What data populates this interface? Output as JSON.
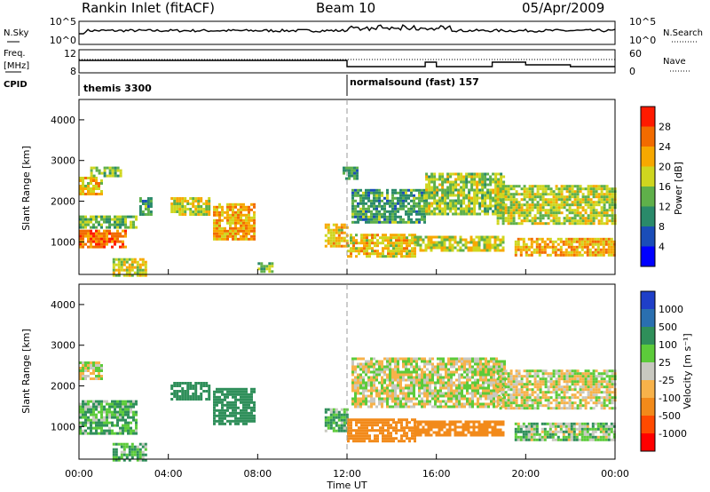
{
  "header": {
    "station": "Rankin Inlet (fitACF)",
    "beam": "Beam 10",
    "date": "05/Apr/2009"
  },
  "top_panels": {
    "nsky_label": "N.Sky",
    "nsky_ticks": [
      "10^5",
      "10^0"
    ],
    "nsearch_label": "N.Search",
    "nsearch_ticks": [
      "10^5",
      "10^0"
    ],
    "freq_label_1": "Freq.",
    "freq_label_2": "[MHz]",
    "freq_ticks": [
      "12",
      "8"
    ],
    "nave_label": "Nave",
    "nave_ticks": [
      "60",
      "0"
    ],
    "cpid_label": "CPID",
    "cpid_segments": [
      {
        "label": "themis 3300",
        "start_hour": 0,
        "end_hour": 12
      },
      {
        "label": "normalsound (fast) 157",
        "start_hour": 12,
        "end_hour": 24
      }
    ]
  },
  "chart_data": [
    {
      "type": "heatmap",
      "name": "power",
      "ylabel": "Slant Range [km]",
      "xlabel": "Time UT",
      "xlim": [
        0,
        24
      ],
      "ylim": [
        200,
        4500
      ],
      "x_ticks": [
        "00:00",
        "04:00",
        "08:00",
        "12:00",
        "16:00",
        "20:00",
        "00:00"
      ],
      "y_ticks": [
        "1000",
        "2000",
        "3000",
        "4000"
      ],
      "colorbar": {
        "label": "Power [dB]",
        "ticks": [
          "4",
          "8",
          "12",
          "16",
          "20",
          "24",
          "28"
        ],
        "colors": [
          "#0000ff",
          "#1a4db8",
          "#2a8a6a",
          "#5fb04a",
          "#cfd61f",
          "#f7a800",
          "#f26b00",
          "#ff1a00"
        ]
      },
      "regions": [
        {
          "t0": 0.0,
          "t1": 1.0,
          "r0": 2200,
          "r1": 2600,
          "level": 20
        },
        {
          "t0": 0.5,
          "t1": 1.9,
          "r0": 2650,
          "r1": 2850,
          "level": 14
        },
        {
          "t0": 0.0,
          "t1": 2.1,
          "r0": 850,
          "r1": 1300,
          "level": 26
        },
        {
          "t0": 0.0,
          "t1": 2.6,
          "r0": 1350,
          "r1": 1650,
          "level": 14
        },
        {
          "t0": 1.5,
          "t1": 3.0,
          "r0": 200,
          "r1": 600,
          "level": 18
        },
        {
          "t0": 2.7,
          "t1": 3.2,
          "r0": 1700,
          "r1": 2100,
          "level": 12
        },
        {
          "t0": 4.1,
          "t1": 5.8,
          "r0": 1650,
          "r1": 2100,
          "level": 18
        },
        {
          "t0": 6.0,
          "t1": 7.9,
          "r0": 1050,
          "r1": 1950,
          "level": 22
        },
        {
          "t0": 8.0,
          "t1": 8.6,
          "r0": 250,
          "r1": 500,
          "level": 14
        },
        {
          "t0": 11.0,
          "t1": 12.0,
          "r0": 900,
          "r1": 1450,
          "level": 20
        },
        {
          "t0": 11.8,
          "t1": 12.4,
          "r0": 2550,
          "r1": 2850,
          "level": 12
        },
        {
          "t0": 12.0,
          "t1": 15.0,
          "r0": 650,
          "r1": 1200,
          "level": 20
        },
        {
          "t0": 12.2,
          "t1": 15.5,
          "r0": 1500,
          "r1": 2300,
          "level": 12
        },
        {
          "t0": 15.0,
          "t1": 19.0,
          "r0": 800,
          "r1": 1150,
          "level": 18
        },
        {
          "t0": 15.5,
          "t1": 19.0,
          "r0": 1700,
          "r1": 2700,
          "level": 16
        },
        {
          "t0": 18.7,
          "t1": 24.0,
          "r0": 1450,
          "r1": 2400,
          "level": 17
        },
        {
          "t0": 19.5,
          "t1": 24.0,
          "r0": 700,
          "r1": 1100,
          "level": 22
        }
      ]
    },
    {
      "type": "heatmap",
      "name": "velocity",
      "ylabel": "Slant Range [km]",
      "xlabel": "Time UT",
      "xlim": [
        0,
        24
      ],
      "ylim": [
        200,
        4500
      ],
      "x_ticks": [
        "00:00",
        "04:00",
        "08:00",
        "12:00",
        "16:00",
        "20:00",
        "00:00"
      ],
      "y_ticks": [
        "1000",
        "2000",
        "3000",
        "4000"
      ],
      "colorbar": {
        "label": "Velocity [m s⁻¹]",
        "ticks": [
          "1000",
          "500",
          "100",
          "25",
          "-25",
          "-100",
          "-500",
          "-1000"
        ],
        "colors": [
          "#1f3fc8",
          "#2a6fb0",
          "#2f8f5a",
          "#5ccb3a",
          "#c8c8c0",
          "#f7b24a",
          "#f28a1a",
          "#ff4a00",
          "#ff0000"
        ]
      },
      "regions": [
        {
          "t0": 0.0,
          "t1": 1.0,
          "r0": 2200,
          "r1": 2600,
          "level": 0
        },
        {
          "t0": 0.0,
          "t1": 2.6,
          "r0": 850,
          "r1": 1650,
          "level": 100
        },
        {
          "t0": 1.5,
          "t1": 3.0,
          "r0": 200,
          "r1": 600,
          "level": 100
        },
        {
          "t0": 4.1,
          "t1": 5.8,
          "r0": 1650,
          "r1": 2100,
          "level": 300
        },
        {
          "t0": 6.0,
          "t1": 7.9,
          "r0": 1050,
          "r1": 1950,
          "level": 300
        },
        {
          "t0": 11.0,
          "t1": 12.0,
          "r0": 900,
          "r1": 1450,
          "level": 100
        },
        {
          "t0": 12.0,
          "t1": 15.0,
          "r0": 650,
          "r1": 1200,
          "level": -300
        },
        {
          "t0": 12.2,
          "t1": 19.0,
          "r0": 1500,
          "r1": 2700,
          "level": 0
        },
        {
          "t0": 15.0,
          "t1": 19.0,
          "r0": 800,
          "r1": 1150,
          "level": -200
        },
        {
          "t0": 18.7,
          "t1": 24.0,
          "r0": 1450,
          "r1": 2400,
          "level": 0
        },
        {
          "t0": 19.5,
          "t1": 24.0,
          "r0": 700,
          "r1": 1100,
          "level": 50
        }
      ]
    }
  ]
}
